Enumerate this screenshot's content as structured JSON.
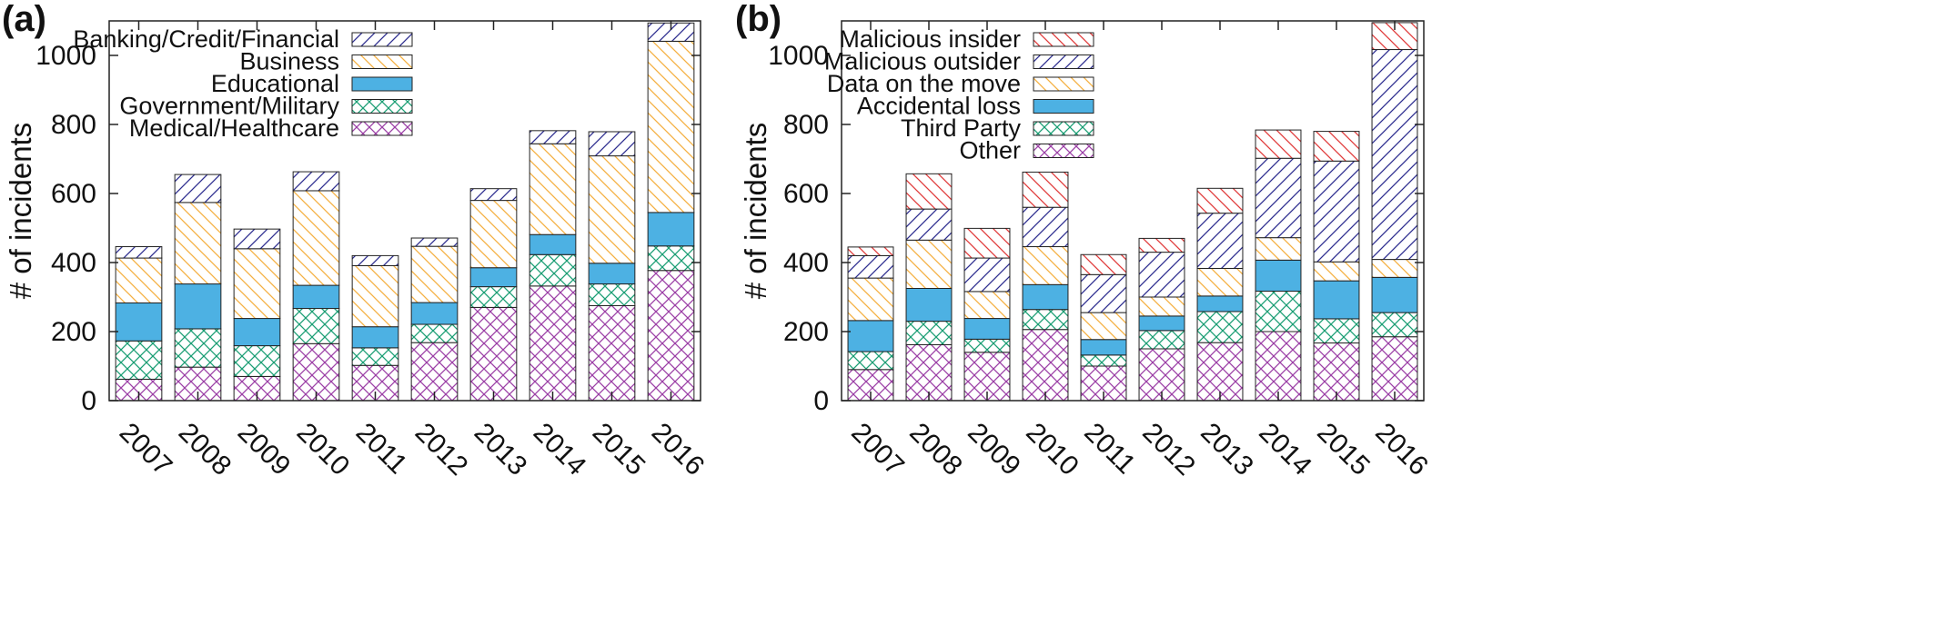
{
  "chart_data": [
    {
      "panel_label": "(a)",
      "type": "bar",
      "stacked": true,
      "categories": [
        "2007",
        "2008",
        "2009",
        "2010",
        "2011",
        "2012",
        "2013",
        "2014",
        "2015",
        "2016"
      ],
      "ylabel": "# of incidents",
      "xlabel": "",
      "ylim": [
        0,
        1100
      ],
      "yticks": [
        0,
        200,
        400,
        600,
        800,
        1000
      ],
      "grid": false,
      "legend_position": "top-left",
      "series": [
        {
          "name": "Medical/Healthcare",
          "pattern": "crosshatch",
          "color": "#9b3fa6",
          "values": [
            62,
            97,
            70,
            165,
            102,
            168,
            270,
            332,
            275,
            377
          ]
        },
        {
          "name": "Government/Military",
          "pattern": "crosshatch",
          "color": "#1a9e74",
          "values": [
            111,
            111,
            89,
            102,
            51,
            53,
            60,
            91,
            63,
            71
          ]
        },
        {
          "name": "Educational",
          "pattern": "solid",
          "color": "#4db1e3",
          "values": [
            110,
            130,
            79,
            67,
            61,
            63,
            55,
            58,
            60,
            97
          ]
        },
        {
          "name": "Business",
          "pattern": "hatch-down",
          "color": "#f5b041",
          "values": [
            130,
            236,
            202,
            274,
            177,
            163,
            195,
            263,
            311,
            496
          ]
        },
        {
          "name": "Banking/Credit/Financial",
          "pattern": "hatch-up",
          "color": "#2d2d8f",
          "values": [
            33,
            81,
            57,
            55,
            29,
            24,
            34,
            38,
            70,
            53
          ]
        }
      ]
    },
    {
      "panel_label": "(b)",
      "type": "bar",
      "stacked": true,
      "categories": [
        "2007",
        "2008",
        "2009",
        "2010",
        "2011",
        "2012",
        "2013",
        "2014",
        "2015",
        "2016"
      ],
      "ylabel": "# of incidents",
      "xlabel": "",
      "ylim": [
        0,
        1100
      ],
      "yticks": [
        0,
        200,
        400,
        600,
        800,
        1000
      ],
      "grid": false,
      "legend_position": "top-left",
      "series": [
        {
          "name": "Other",
          "pattern": "crosshatch",
          "color": "#9b3fa6",
          "values": [
            90,
            162,
            140,
            206,
            100,
            150,
            168,
            200,
            167,
            185
          ]
        },
        {
          "name": "Third Party",
          "pattern": "crosshatch",
          "color": "#1a9e74",
          "values": [
            52,
            68,
            38,
            58,
            32,
            53,
            90,
            117,
            70,
            70
          ]
        },
        {
          "name": "Accidental loss",
          "pattern": "solid",
          "color": "#4db1e3",
          "values": [
            90,
            95,
            60,
            72,
            45,
            42,
            45,
            90,
            110,
            102
          ]
        },
        {
          "name": "Data on the move",
          "pattern": "hatch-down",
          "color": "#f5b041",
          "values": [
            123,
            140,
            78,
            110,
            78,
            55,
            80,
            65,
            55,
            52
          ]
        },
        {
          "name": "Malicious outsider",
          "pattern": "hatch-up",
          "color": "#2d2d8f",
          "values": [
            65,
            90,
            97,
            114,
            110,
            130,
            160,
            230,
            292,
            608
          ]
        },
        {
          "name": "Malicious insider",
          "pattern": "hatch-down",
          "color": "#e03a3a",
          "values": [
            25,
            102,
            86,
            102,
            58,
            40,
            72,
            82,
            86,
            78
          ]
        }
      ]
    }
  ]
}
